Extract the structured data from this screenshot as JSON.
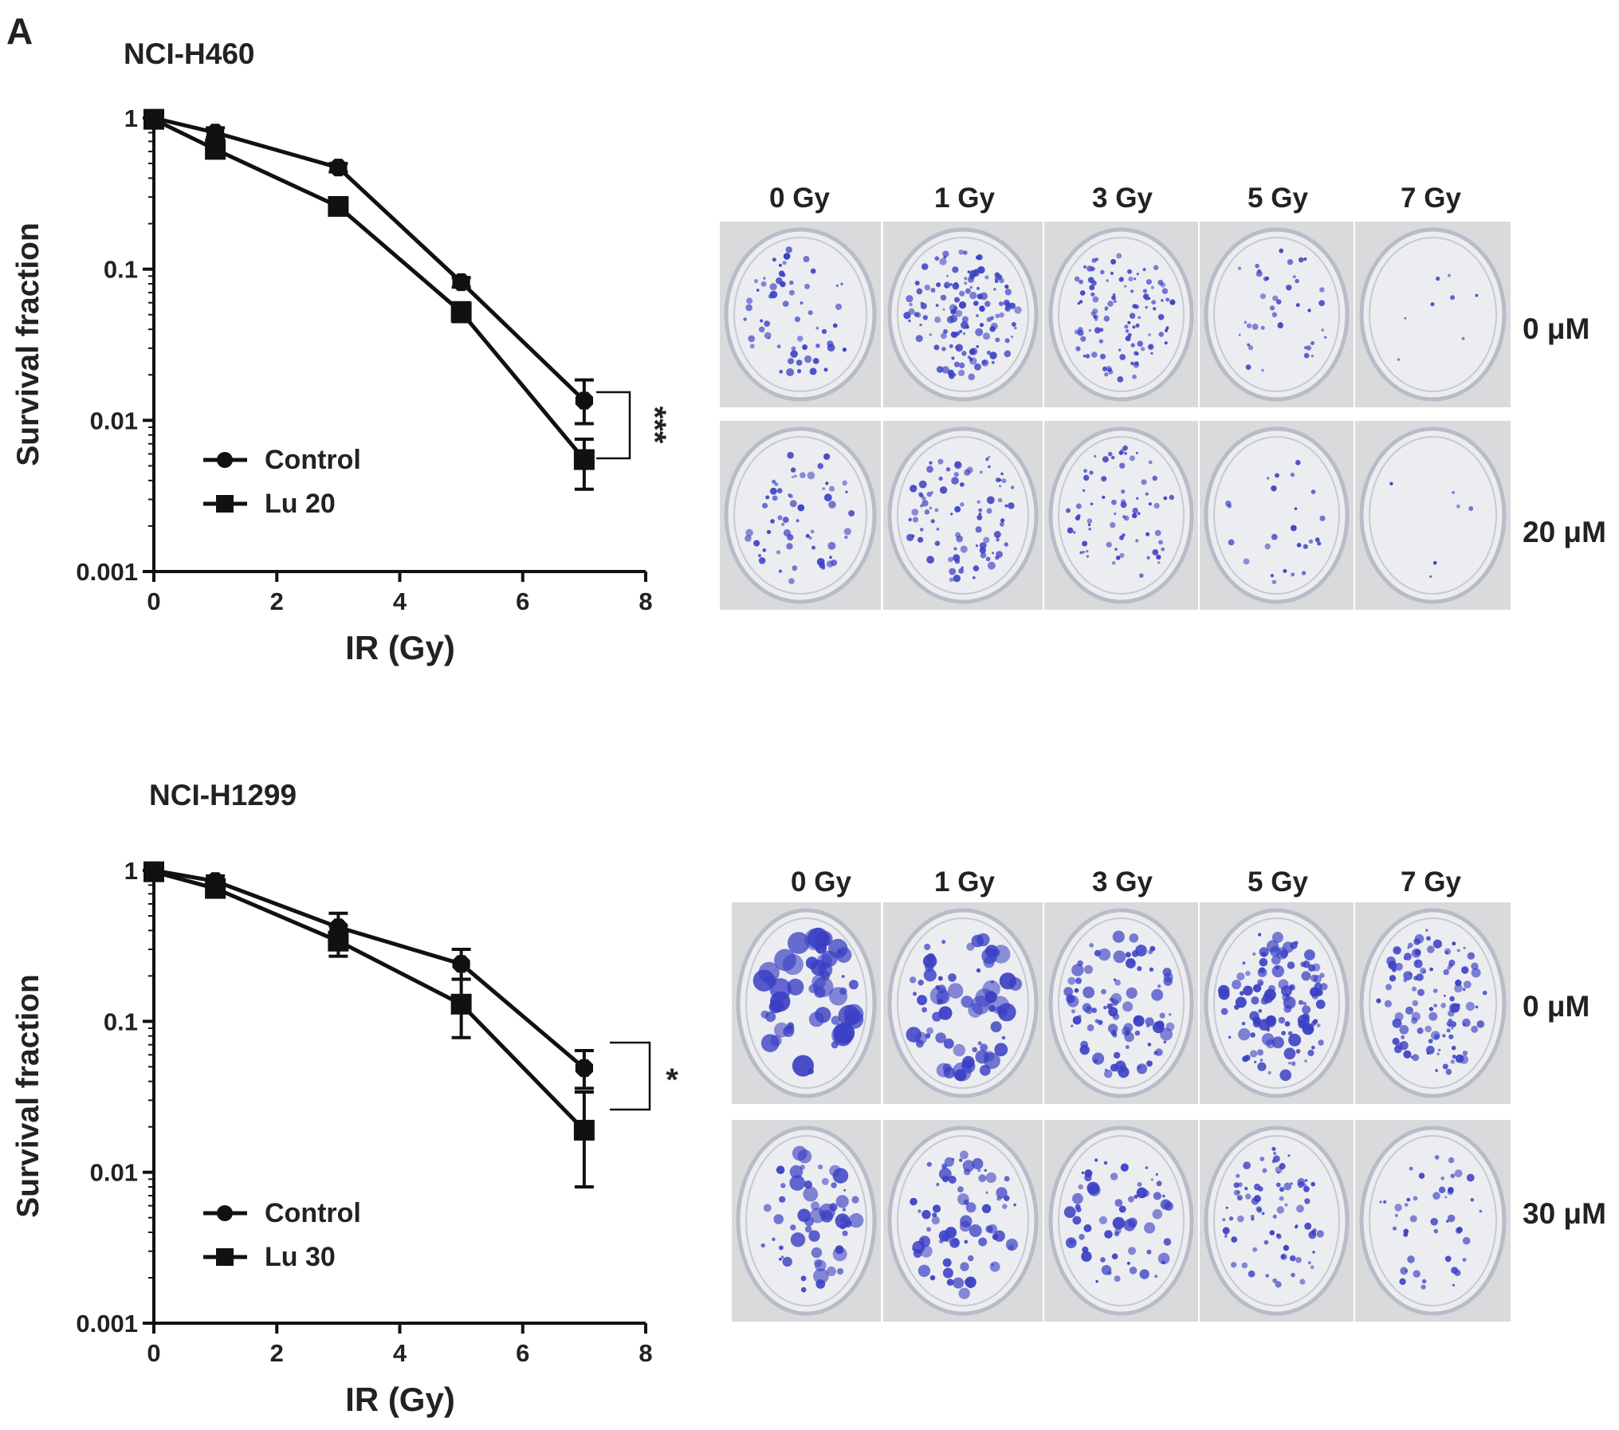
{
  "panel_label": "A",
  "plate_row_labels": {
    "top": [
      "0 μM",
      "20 μM"
    ],
    "bottom": [
      "0 μM",
      "30 μM"
    ]
  },
  "plate_column_labels": [
    "0 Gy",
    "1 Gy",
    "3 Gy",
    "5 Gy",
    "7 Gy"
  ],
  "colors": {
    "text": "#222222",
    "line": "#111111",
    "colony": "#3a3fc4",
    "plate_bg": "#d9dadc",
    "plate_fill": "#ecedf0"
  },
  "chart_data": [
    {
      "type": "line",
      "title": "NCI-H460",
      "xlabel": "IR (Gy)",
      "ylabel": "Survival fraction",
      "xlim": [
        0,
        8
      ],
      "xticks": [
        0,
        2,
        4,
        6,
        8
      ],
      "ylim": [
        0.001,
        1
      ],
      "yscale": "log",
      "yticks": [
        1,
        0.1,
        0.01,
        0.001
      ],
      "ytick_labels": [
        "1",
        "0.1",
        "0.01",
        "0.001"
      ],
      "grid": false,
      "legend_position": "bottom-left",
      "significance": "***",
      "series": [
        {
          "name": "Control",
          "marker": "octagon",
          "x": [
            0,
            1,
            3,
            5,
            7
          ],
          "y": [
            1.0,
            0.8,
            0.47,
            0.082,
            0.0135
          ],
          "err_low": [
            0.93,
            0.74,
            0.44,
            0.076,
            0.0095
          ],
          "err_high": [
            1.07,
            0.86,
            0.5,
            0.088,
            0.0185
          ]
        },
        {
          "name": "Lu 20",
          "marker": "square",
          "x": [
            0,
            1,
            3,
            5,
            7
          ],
          "y": [
            0.98,
            0.62,
            0.26,
            0.052,
            0.0055
          ],
          "err_low": [
            0.9,
            0.55,
            0.24,
            0.045,
            0.0035
          ],
          "err_high": [
            1.06,
            0.69,
            0.28,
            0.06,
            0.0075
          ]
        }
      ]
    },
    {
      "type": "line",
      "title": "NCI-H1299",
      "xlabel": "IR (Gy)",
      "ylabel": "Survival fraction",
      "xlim": [
        0,
        8
      ],
      "xticks": [
        0,
        2,
        4,
        6,
        8
      ],
      "ylim": [
        0.001,
        1
      ],
      "yscale": "log",
      "yticks": [
        1,
        0.1,
        0.01,
        0.001
      ],
      "ytick_labels": [
        "1",
        "0.1",
        "0.01",
        "0.001"
      ],
      "grid": false,
      "legend_position": "bottom-left",
      "significance": "*",
      "series": [
        {
          "name": "Control",
          "marker": "octagon",
          "x": [
            0,
            1,
            3,
            5,
            7
          ],
          "y": [
            1.0,
            0.85,
            0.42,
            0.24,
            0.049
          ],
          "err_low": [
            0.93,
            0.78,
            0.34,
            0.19,
            0.036
          ],
          "err_high": [
            1.07,
            0.92,
            0.52,
            0.3,
            0.064
          ]
        },
        {
          "name": "Lu 30",
          "marker": "square",
          "x": [
            0,
            1,
            3,
            5,
            7
          ],
          "y": [
            0.98,
            0.76,
            0.34,
            0.13,
            0.019
          ],
          "err_low": [
            0.9,
            0.68,
            0.27,
            0.078,
            0.008
          ],
          "err_high": [
            1.06,
            0.84,
            0.43,
            0.19,
            0.034
          ]
        }
      ]
    }
  ]
}
